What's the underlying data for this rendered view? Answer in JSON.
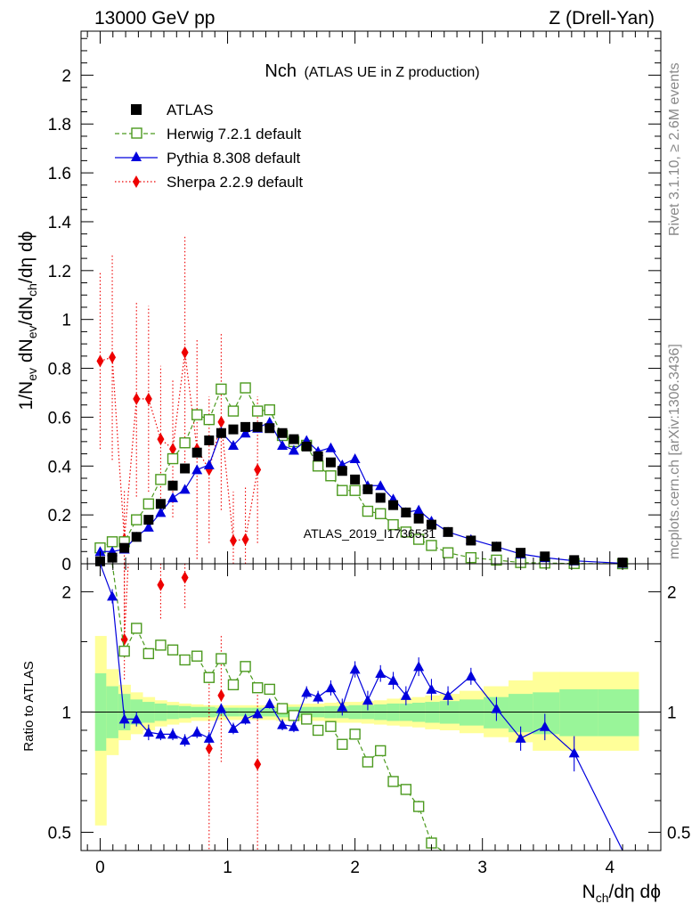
{
  "header": {
    "left": "13000 GeV pp",
    "right": "Z (Drell-Yan)"
  },
  "side_labels": {
    "rivet": "Rivet 3.1.10, ≥ 2.6M events",
    "mcplots": "mcplots.cern.ch [arXiv:1306.3436]"
  },
  "colors": {
    "atlas": "#000000",
    "herwig": "#4c9a1f",
    "pythia": "#0000dd",
    "sherpa": "#ee0000",
    "band_inner": "#99f599",
    "band_outer": "#ffff99"
  },
  "chart_data": [
    {
      "type": "scatter",
      "title": "Nch (ATLAS UE in Z production)",
      "title_main": "Nch",
      "title_sub": "(ATLAS UE in Z production)",
      "analysis_label": "ATLAS_2019_I1736531",
      "ylabel_parts": [
        "1/N",
        "ev",
        " dN",
        "ev",
        "/dN",
        "ch",
        "/dη dϕ"
      ],
      "xlabel_parts": [
        "N",
        "ch",
        "/dη dϕ"
      ],
      "xlim": [
        -0.15,
        4.4
      ],
      "ylim": [
        0,
        2.18
      ],
      "yticks": [
        "0",
        "0.2",
        "0.4",
        "0.6",
        "0.8",
        "1",
        "1.2",
        "1.4",
        "1.6",
        "1.8",
        "2"
      ],
      "legend": [
        {
          "label": "ATLAS"
        },
        {
          "label": "Herwig 7.2.1 default"
        },
        {
          "label": "Pythia 8.308 default"
        },
        {
          "label": "Sherpa 2.2.9 default"
        }
      ],
      "series": [
        {
          "name": "ATLAS",
          "x": [
            0.0,
            0.095,
            0.19,
            0.285,
            0.38,
            0.475,
            0.57,
            0.665,
            0.76,
            0.855,
            0.95,
            1.045,
            1.14,
            1.235,
            1.33,
            1.43,
            1.52,
            1.62,
            1.71,
            1.81,
            1.9,
            2.0,
            2.1,
            2.2,
            2.3,
            2.4,
            2.5,
            2.6,
            2.73,
            2.91,
            3.11,
            3.3,
            3.49,
            3.72,
            4.1
          ],
          "y": [
            0.01,
            0.025,
            0.065,
            0.11,
            0.18,
            0.245,
            0.32,
            0.39,
            0.455,
            0.505,
            0.535,
            0.55,
            0.56,
            0.56,
            0.555,
            0.535,
            0.51,
            0.48,
            0.44,
            0.415,
            0.38,
            0.345,
            0.305,
            0.27,
            0.24,
            0.21,
            0.185,
            0.16,
            0.13,
            0.095,
            0.07,
            0.045,
            0.03,
            0.015,
            0.005
          ]
        },
        {
          "name": "Herwig 7.2.1 default",
          "x": [
            0.0,
            0.095,
            0.19,
            0.285,
            0.38,
            0.475,
            0.57,
            0.665,
            0.76,
            0.855,
            0.95,
            1.045,
            1.14,
            1.235,
            1.33,
            1.43,
            1.52,
            1.62,
            1.71,
            1.81,
            1.9,
            2.0,
            2.1,
            2.2,
            2.3,
            2.4,
            2.5,
            2.6,
            2.73,
            2.91,
            3.11,
            3.3,
            3.49,
            3.72,
            4.1
          ],
          "y": [
            0.065,
            0.09,
            0.09,
            0.18,
            0.245,
            0.345,
            0.43,
            0.495,
            0.61,
            0.59,
            0.715,
            0.625,
            0.72,
            0.625,
            0.63,
            0.525,
            0.5,
            0.485,
            0.4,
            0.36,
            0.3,
            0.3,
            0.215,
            0.205,
            0.16,
            0.13,
            0.1,
            0.075,
            0.045,
            0.025,
            0.015,
            0.005,
            0.003,
            0.001,
            0.0
          ]
        },
        {
          "name": "Pythia 8.308 default",
          "x": [
            0.0,
            0.095,
            0.19,
            0.285,
            0.38,
            0.475,
            0.57,
            0.665,
            0.76,
            0.855,
            0.95,
            1.045,
            1.14,
            1.235,
            1.33,
            1.43,
            1.52,
            1.62,
            1.71,
            1.81,
            1.9,
            2.0,
            2.1,
            2.2,
            2.3,
            2.4,
            2.5,
            2.6,
            2.73,
            2.91,
            3.11,
            3.3,
            3.49,
            3.72,
            4.1
          ],
          "y": [
            0.05,
            0.05,
            0.06,
            0.11,
            0.15,
            0.21,
            0.27,
            0.305,
            0.385,
            0.405,
            0.54,
            0.485,
            0.535,
            0.555,
            0.58,
            0.485,
            0.465,
            0.505,
            0.46,
            0.475,
            0.405,
            0.43,
            0.32,
            0.32,
            0.265,
            0.21,
            0.22,
            0.175,
            0.13,
            0.1,
            0.07,
            0.04,
            0.025,
            0.012,
            0.002
          ]
        },
        {
          "name": "Sherpa 2.2.9 default",
          "x": [
            0.0,
            0.095,
            0.19,
            0.285,
            0.38,
            0.475,
            0.57,
            0.665,
            0.76,
            0.855,
            0.95,
            1.045,
            1.14,
            1.235
          ],
          "y": [
            0.83,
            0.845,
            0.1,
            0.675,
            0.675,
            0.51,
            0.47,
            0.865,
            0.47,
            0.385,
            0.58,
            0.095,
            0.1,
            0.385
          ],
          "err": [
            0.36,
            0.42,
            0.2,
            0.4,
            0.38,
            0.3,
            0.28,
            0.48,
            0.45,
            0.3,
            0.36,
            0.2,
            0.22,
            0.3
          ]
        }
      ]
    },
    {
      "type": "line",
      "title": "",
      "ylabel": "Ratio to ATLAS",
      "xlabel": "",
      "xlim": [
        -0.15,
        4.4
      ],
      "ylim": [
        0.45,
        2.35
      ],
      "yscale": "log",
      "reference": 1.0,
      "yticks_left": [
        "2",
        "1",
        "0.5"
      ],
      "yticks_right": [
        "2",
        "1",
        "0.5"
      ],
      "xticks": [
        "0",
        "1",
        "2",
        "3",
        "4"
      ],
      "bands": {
        "edges": [
          0.0,
          0.095,
          0.19,
          0.285,
          0.38,
          0.475,
          0.57,
          0.665,
          0.76,
          0.855,
          0.95,
          1.045,
          1.14,
          1.235,
          1.33,
          1.43,
          1.52,
          1.62,
          1.71,
          1.81,
          1.9,
          2.0,
          2.1,
          2.2,
          2.3,
          2.4,
          2.5,
          2.6,
          2.73,
          2.91,
          3.11,
          3.3,
          3.49,
          3.72,
          4.1,
          4.35
        ],
        "inner_lo": [
          0.8,
          0.86,
          0.9,
          0.93,
          0.94,
          0.95,
          0.96,
          0.965,
          0.97,
          0.97,
          0.975,
          0.975,
          0.975,
          0.975,
          0.975,
          0.97,
          0.97,
          0.97,
          0.97,
          0.965,
          0.965,
          0.96,
          0.96,
          0.955,
          0.95,
          0.95,
          0.945,
          0.94,
          0.935,
          0.925,
          0.91,
          0.89,
          0.88,
          0.87,
          0.87
        ],
        "inner_hi": [
          1.25,
          1.16,
          1.11,
          1.075,
          1.06,
          1.05,
          1.04,
          1.035,
          1.03,
          1.03,
          1.025,
          1.025,
          1.025,
          1.025,
          1.025,
          1.03,
          1.03,
          1.03,
          1.03,
          1.035,
          1.035,
          1.04,
          1.04,
          1.045,
          1.05,
          1.05,
          1.055,
          1.06,
          1.065,
          1.075,
          1.09,
          1.11,
          1.12,
          1.14,
          1.14
        ],
        "outer_lo": [
          0.52,
          0.78,
          0.85,
          0.88,
          0.9,
          0.92,
          0.93,
          0.94,
          0.95,
          0.95,
          0.955,
          0.955,
          0.955,
          0.955,
          0.955,
          0.95,
          0.95,
          0.95,
          0.95,
          0.945,
          0.94,
          0.94,
          0.935,
          0.93,
          0.925,
          0.92,
          0.915,
          0.905,
          0.9,
          0.885,
          0.865,
          0.84,
          0.8,
          0.8,
          0.8
        ],
        "outer_hi": [
          1.55,
          1.28,
          1.17,
          1.12,
          1.09,
          1.07,
          1.06,
          1.05,
          1.045,
          1.04,
          1.04,
          1.04,
          1.04,
          1.04,
          1.04,
          1.045,
          1.045,
          1.05,
          1.05,
          1.055,
          1.06,
          1.06,
          1.065,
          1.07,
          1.08,
          1.085,
          1.09,
          1.1,
          1.11,
          1.13,
          1.16,
          1.2,
          1.26,
          1.26,
          1.26
        ]
      },
      "series": [
        {
          "name": "Herwig 7.2.1 default",
          "x": [
            0.095,
            0.19,
            0.285,
            0.38,
            0.475,
            0.57,
            0.665,
            0.76,
            0.855,
            0.95,
            1.045,
            1.14,
            1.235,
            1.33,
            1.43,
            1.52,
            1.62,
            1.71,
            1.81,
            1.9,
            2.0,
            2.1,
            2.2,
            2.3,
            2.4,
            2.5,
            2.6,
            2.68
          ],
          "y": [
            3.2,
            1.42,
            1.62,
            1.4,
            1.47,
            1.43,
            1.35,
            1.38,
            1.22,
            1.36,
            1.17,
            1.3,
            1.15,
            1.14,
            1.02,
            0.98,
            0.96,
            0.9,
            0.92,
            0.83,
            0.88,
            0.75,
            0.8,
            0.67,
            0.64,
            0.58,
            0.47,
            0.4
          ],
          "err": [
            0.05,
            0.05,
            0.05,
            0.04,
            0.04,
            0.04,
            0.04,
            0.04,
            0.04,
            0.04,
            0.03,
            0.03,
            0.03,
            0.03,
            0.02,
            0.02,
            0.02,
            0.02,
            0.02,
            0.02,
            0.02,
            0.02,
            0.02,
            0.02,
            0.02,
            0.02,
            0.02,
            0.02
          ]
        },
        {
          "name": "Pythia 8.308 default",
          "x": [
            0.0,
            0.095,
            0.19,
            0.285,
            0.38,
            0.475,
            0.57,
            0.665,
            0.76,
            0.855,
            0.95,
            1.045,
            1.14,
            1.235,
            1.33,
            1.43,
            1.52,
            1.62,
            1.71,
            1.81,
            1.9,
            2.0,
            2.1,
            2.2,
            2.3,
            2.4,
            2.5,
            2.6,
            2.73,
            2.91,
            3.11,
            3.3,
            3.49,
            3.72,
            4.1
          ],
          "y": [
            3.5,
            1.95,
            0.96,
            0.96,
            0.89,
            0.88,
            0.88,
            0.85,
            0.89,
            0.86,
            1.02,
            0.91,
            0.96,
            0.99,
            1.05,
            0.93,
            0.92,
            1.12,
            1.09,
            1.15,
            1.03,
            1.28,
            1.07,
            1.25,
            1.2,
            1.1,
            1.3,
            1.14,
            1.1,
            1.23,
            1.02,
            0.86,
            0.92,
            0.79,
            0.44
          ],
          "err": [
            0.1,
            0.08,
            0.05,
            0.04,
            0.04,
            0.03,
            0.03,
            0.03,
            0.03,
            0.03,
            0.03,
            0.03,
            0.03,
            0.03,
            0.03,
            0.03,
            0.03,
            0.04,
            0.04,
            0.05,
            0.05,
            0.06,
            0.06,
            0.06,
            0.06,
            0.06,
            0.07,
            0.07,
            0.06,
            0.06,
            0.07,
            0.06,
            0.07,
            0.08,
            0.08
          ]
        },
        {
          "name": "Sherpa 2.2.9 default",
          "x": [
            0.19,
            0.475,
            0.665,
            0.855,
            0.95,
            1.235
          ],
          "y": [
            1.52,
            2.08,
            2.17,
            0.81,
            1.1,
            0.74
          ],
          "err_lo": [
            1.2,
            1.7,
            1.8,
            0.45,
            0.75,
            0.35
          ],
          "err_hi": [
            2.6,
            2.6,
            2.6,
            1.2,
            1.55,
            1.15
          ]
        }
      ]
    }
  ]
}
